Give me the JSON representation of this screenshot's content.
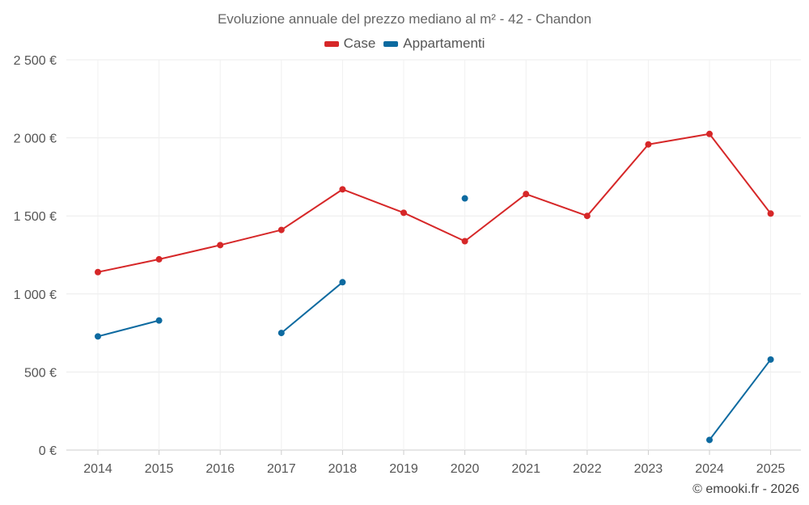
{
  "chart_data": {
    "type": "line",
    "title": "Evoluzione annuale del prezzo mediano al m² - 42 - Chandon",
    "xlabel": "",
    "ylabel": "",
    "categories": [
      "2014",
      "2015",
      "2016",
      "2017",
      "2018",
      "2019",
      "2020",
      "2021",
      "2022",
      "2023",
      "2024",
      "2025"
    ],
    "ylim": [
      0,
      2500
    ],
    "y_ticks": [
      0,
      500,
      1000,
      1500,
      2000,
      2500
    ],
    "y_tick_labels": [
      "0 €",
      "500 €",
      "1 000 €",
      "1 500 €",
      "2 000 €",
      "2 500 €"
    ],
    "grid": true,
    "legend_position": "top-center",
    "series": [
      {
        "name": "Case",
        "color": "#d62728",
        "values": [
          1140,
          1222,
          1313,
          1410,
          1670,
          1520,
          1338,
          1640,
          1500,
          1958,
          2025,
          1515
        ]
      },
      {
        "name": "Appartamenti",
        "color": "#0d6aa0",
        "values": [
          728,
          830,
          null,
          750,
          1075,
          null,
          1612,
          null,
          null,
          null,
          65,
          580
        ]
      }
    ]
  },
  "credit": "© emooki.fr - 2026"
}
